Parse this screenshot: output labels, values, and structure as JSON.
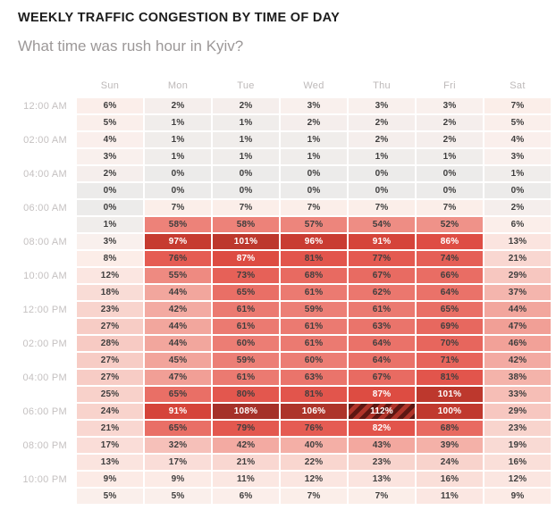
{
  "chart_data": {
    "type": "heatmap",
    "title": "WEEKLY TRAFFIC CONGESTION BY TIME OF DAY",
    "subtitle": "What time was rush hour in Kyiv?",
    "unit": "%",
    "columns": [
      "Sun",
      "Mon",
      "Tue",
      "Wed",
      "Thu",
      "Fri",
      "Sat"
    ],
    "row_labels": [
      "12:00 AM",
      "",
      "02:00 AM",
      "",
      "04:00 AM",
      "",
      "06:00 AM",
      "",
      "08:00 AM",
      "",
      "10:00 AM",
      "",
      "12:00 PM",
      "",
      "02:00 PM",
      "",
      "04:00 PM",
      "",
      "06:00 PM",
      "",
      "08:00 PM",
      "",
      "10:00 PM",
      ""
    ],
    "rows": [
      [
        6,
        2,
        2,
        3,
        3,
        3,
        7
      ],
      [
        5,
        1,
        1,
        2,
        2,
        2,
        5
      ],
      [
        4,
        1,
        1,
        1,
        2,
        2,
        4
      ],
      [
        3,
        1,
        1,
        1,
        1,
        1,
        3
      ],
      [
        2,
        0,
        0,
        0,
        0,
        0,
        1
      ],
      [
        0,
        0,
        0,
        0,
        0,
        0,
        0
      ],
      [
        0,
        7,
        7,
        7,
        7,
        7,
        2
      ],
      [
        1,
        58,
        58,
        57,
        54,
        52,
        6
      ],
      [
        3,
        97,
        101,
        96,
        91,
        86,
        13
      ],
      [
        8,
        76,
        87,
        81,
        77,
        74,
        21
      ],
      [
        12,
        55,
        73,
        68,
        67,
        66,
        29
      ],
      [
        18,
        44,
        65,
        61,
        62,
        64,
        37
      ],
      [
        23,
        42,
        61,
        59,
        61,
        65,
        44
      ],
      [
        27,
        44,
        61,
        61,
        63,
        69,
        47
      ],
      [
        28,
        44,
        60,
        61,
        64,
        70,
        46
      ],
      [
        27,
        45,
        59,
        60,
        64,
        71,
        42
      ],
      [
        27,
        47,
        61,
        63,
        67,
        81,
        38
      ],
      [
        25,
        65,
        80,
        81,
        87,
        101,
        33
      ],
      [
        24,
        91,
        108,
        106,
        112,
        100,
        29
      ],
      [
        21,
        65,
        79,
        76,
        82,
        68,
        23
      ],
      [
        17,
        32,
        42,
        40,
        43,
        39,
        19
      ],
      [
        13,
        17,
        21,
        22,
        23,
        24,
        16
      ],
      [
        9,
        9,
        11,
        12,
        13,
        16,
        12
      ],
      [
        5,
        5,
        6,
        7,
        7,
        11,
        9
      ]
    ],
    "highlight_cell": {
      "row_index": 18,
      "col_index": 4,
      "row_time": "06:00 PM",
      "column": "Thu",
      "value": 112,
      "style": "diagonal-hatch"
    },
    "color_scale": {
      "stops": [
        [
          0,
          "#ECEBEA"
        ],
        [
          3,
          "#F9F0ED"
        ],
        [
          8,
          "#FCEDE8"
        ],
        [
          15,
          "#FAE0DB"
        ],
        [
          25,
          "#F8D1CA"
        ],
        [
          35,
          "#F5B9B1"
        ],
        [
          45,
          "#F2A49B"
        ],
        [
          55,
          "#EE8A81"
        ],
        [
          65,
          "#E96F66"
        ],
        [
          75,
          "#E55D54"
        ],
        [
          82,
          "#E2544B"
        ],
        [
          88,
          "#DC4A40"
        ],
        [
          93,
          "#D04036"
        ],
        [
          98,
          "#C43A2F"
        ],
        [
          102,
          "#BB372C"
        ],
        [
          107,
          "#AA332A"
        ],
        [
          112,
          "#922B23"
        ]
      ],
      "white_text_min": 82,
      "dark_text_color": "#3F3E3E",
      "white_text_color": "#FFFFFF",
      "hatch_colors": [
        "#5D1713",
        "#B0342A"
      ]
    }
  }
}
